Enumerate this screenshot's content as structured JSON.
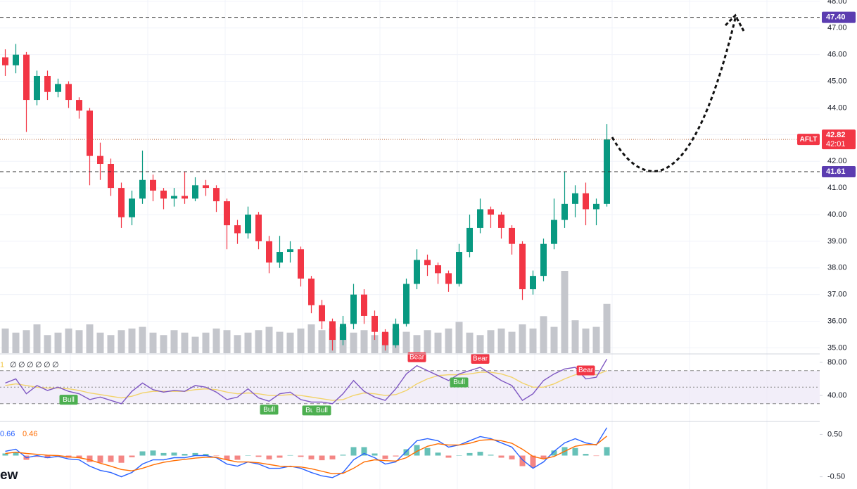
{
  "chart_data": [
    {
      "type": "candlestick",
      "symbol": "AFLT",
      "countdown": "42:01",
      "open": [
        45.9,
        45.6,
        46.0,
        44.3,
        45.2,
        44.6,
        44.9,
        44.3,
        43.9,
        42.2,
        41.9,
        41.0,
        39.9,
        40.6,
        41.3,
        40.9,
        40.6,
        40.7,
        40.6,
        41.1,
        41.0,
        40.5,
        39.6,
        39.3,
        40.0,
        39.0,
        38.2,
        38.6,
        38.7,
        37.6,
        36.6,
        36.0,
        35.3,
        35.9,
        37.0,
        36.2,
        35.6,
        35.1,
        35.9,
        37.4,
        38.3,
        38.1,
        37.8,
        37.4,
        38.6,
        39.5,
        40.2,
        40.0,
        39.5,
        38.9,
        37.2,
        37.7,
        38.9,
        39.8,
        40.4,
        40.8,
        40.2,
        40.4
      ],
      "high": [
        46.2,
        46.4,
        46.1,
        45.4,
        45.4,
        45.1,
        45.0,
        44.4,
        44.0,
        42.7,
        42.1,
        41.2,
        40.9,
        42.4,
        41.5,
        41.0,
        41.0,
        41.6,
        41.4,
        41.3,
        41.1,
        40.6,
        39.8,
        40.3,
        40.1,
        39.2,
        39.2,
        39.0,
        38.8,
        37.7,
        36.8,
        36.1,
        36.2,
        37.4,
        37.2,
        36.4,
        35.7,
        36.1,
        37.6,
        38.7,
        38.5,
        38.2,
        37.9,
        38.9,
        40.0,
        40.6,
        40.3,
        40.1,
        39.6,
        39.0,
        37.9,
        39.1,
        40.6,
        41.6,
        41.1,
        41.2,
        40.6,
        43.4
      ],
      "low": [
        45.2,
        45.3,
        43.1,
        44.1,
        44.3,
        44.4,
        44.0,
        43.6,
        41.1,
        41.3,
        40.7,
        39.5,
        39.6,
        40.4,
        40.5,
        40.2,
        40.3,
        40.4,
        40.5,
        40.7,
        40.1,
        38.7,
        38.9,
        39.1,
        38.7,
        37.8,
        38.0,
        38.2,
        37.3,
        36.3,
        35.7,
        34.9,
        35.1,
        35.7,
        35.9,
        35.3,
        34.9,
        35.0,
        35.8,
        37.2,
        37.7,
        37.4,
        37.1,
        37.3,
        38.4,
        39.3,
        39.5,
        39.1,
        38.5,
        36.8,
        37.0,
        37.5,
        38.7,
        39.5,
        39.9,
        39.6,
        39.6,
        40.3
      ],
      "close": [
        45.6,
        46.0,
        44.3,
        45.2,
        44.6,
        44.9,
        44.3,
        43.9,
        42.2,
        41.9,
        41.0,
        39.9,
        40.6,
        41.3,
        40.9,
        40.6,
        40.7,
        40.6,
        41.1,
        41.0,
        40.5,
        39.6,
        39.3,
        40.0,
        39.0,
        38.2,
        38.6,
        38.7,
        37.6,
        36.6,
        36.0,
        35.3,
        35.9,
        37.0,
        36.2,
        35.6,
        35.1,
        35.9,
        37.4,
        38.3,
        38.1,
        37.8,
        37.4,
        38.6,
        39.5,
        40.2,
        40.0,
        39.5,
        38.9,
        37.2,
        37.7,
        38.9,
        39.8,
        40.4,
        40.8,
        40.2,
        40.4,
        42.82
      ],
      "volume": [
        30,
        25,
        28,
        35,
        22,
        25,
        30,
        28,
        35,
        25,
        22,
        28,
        30,
        32,
        25,
        22,
        28,
        25,
        20,
        25,
        30,
        28,
        22,
        25,
        28,
        32,
        26,
        25,
        30,
        35,
        28,
        30,
        32,
        25,
        28,
        22,
        25,
        30,
        26,
        22,
        28,
        25,
        30,
        38,
        25,
        22,
        28,
        30,
        26,
        35,
        30,
        45,
        32,
        100,
        40,
        30,
        32,
        60
      ],
      "volume_ylim": [
        0,
        100
      ],
      "up_color": "#089981",
      "down_color": "#f23645",
      "volume_color": "#c4c6cc",
      "ylim": [
        34.8,
        48.05
      ],
      "yticks": [
        {
          "value": 35,
          "label": "35.00"
        },
        {
          "value": 36,
          "label": "36.00"
        },
        {
          "value": 37,
          "label": "37.00"
        },
        {
          "value": 38,
          "label": "38.00"
        },
        {
          "value": 39,
          "label": "39.00"
        },
        {
          "value": 40,
          "label": "40.00"
        },
        {
          "value": 41,
          "label": "41.00"
        },
        {
          "value": 42,
          "label": "42.00"
        },
        {
          "value": 43,
          "label": "43.00"
        },
        {
          "value": 44,
          "label": "44.00"
        },
        {
          "value": 45,
          "label": "45.00"
        },
        {
          "value": 46,
          "label": "46.00"
        },
        {
          "value": 47,
          "label": "47.00"
        },
        {
          "value": 48,
          "label": "48.00"
        }
      ],
      "grid": true,
      "levels": [
        {
          "value": 47.4,
          "label": "47.40"
        },
        41.61
      ],
      "level_color": "#5b3cb0"
    },
    {
      "type": "rsi",
      "header": [
        "1",
        "∅",
        "∅",
        "∅",
        "∅",
        "∅",
        "∅"
      ],
      "series": [
        {
          "color": "#7e57c2",
          "values": [
            55,
            60,
            42,
            52,
            46,
            50,
            45,
            42,
            35,
            38,
            34,
            30,
            45,
            55,
            47,
            44,
            46,
            45,
            52,
            50,
            44,
            35,
            38,
            48,
            37,
            33,
            42,
            44,
            35,
            32,
            32,
            30,
            42,
            58,
            45,
            38,
            34,
            48,
            66,
            76,
            70,
            64,
            58,
            66,
            70,
            74,
            66,
            58,
            52,
            34,
            42,
            58,
            66,
            72,
            74,
            60,
            62,
            84
          ]
        },
        {
          "color": "#f2d36b",
          "values": [
            52,
            54,
            52,
            50,
            49,
            49,
            48,
            46,
            43,
            41,
            39,
            37,
            39,
            43,
            45,
            45,
            45,
            45,
            47,
            48,
            47,
            44,
            42,
            43,
            42,
            40,
            40,
            41,
            40,
            38,
            36,
            34,
            35,
            40,
            43,
            42,
            40,
            41,
            46,
            54,
            60,
            64,
            65,
            65,
            66,
            68,
            68,
            66,
            62,
            55,
            50,
            50,
            54,
            60,
            65,
            66,
            65,
            70
          ]
        }
      ],
      "signals": [
        null,
        null,
        null,
        null,
        null,
        null,
        "Bull",
        null,
        null,
        null,
        null,
        null,
        null,
        null,
        null,
        null,
        null,
        null,
        null,
        null,
        null,
        null,
        null,
        null,
        null,
        "Bull",
        null,
        null,
        null,
        "Bull",
        "Bull",
        null,
        null,
        null,
        null,
        null,
        null,
        null,
        null,
        "Bear",
        null,
        null,
        null,
        "Bull",
        null,
        "Bear",
        null,
        null,
        null,
        null,
        null,
        null,
        null,
        null,
        null,
        "Bear",
        null,
        null
      ],
      "bull_color": "#4caf50",
      "bear_color": "#f23645",
      "bands": [
        30,
        50,
        70
      ],
      "band_color": "#ede7f6",
      "ylim": [
        9.4,
        88.5
      ],
      "yticks": [
        {
          "value": 80,
          "label": "80.00"
        },
        {
          "value": 40,
          "label": "40.00"
        }
      ]
    },
    {
      "type": "macd",
      "watermark": "ew",
      "series": [
        {
          "color": "#2962ff",
          "values": [
            0.1,
            0.15,
            -0.05,
            0.0,
            -0.05,
            -0.02,
            -0.08,
            -0.1,
            -0.25,
            -0.35,
            -0.4,
            -0.5,
            -0.4,
            -0.2,
            -0.1,
            -0.1,
            -0.05,
            -0.05,
            0.0,
            0.0,
            -0.05,
            -0.2,
            -0.25,
            -0.15,
            -0.2,
            -0.3,
            -0.3,
            -0.25,
            -0.3,
            -0.4,
            -0.48,
            -0.52,
            -0.4,
            -0.1,
            0.05,
            -0.05,
            -0.2,
            -0.15,
            0.1,
            0.35,
            0.4,
            0.35,
            0.2,
            0.25,
            0.35,
            0.45,
            0.4,
            0.3,
            0.2,
            -0.1,
            -0.3,
            -0.15,
            0.1,
            0.3,
            0.4,
            0.3,
            0.25,
            0.66
          ]
        },
        {
          "color": "#ff6d00",
          "values": [
            0.05,
            0.08,
            0.05,
            0.03,
            0.01,
            0.0,
            -0.03,
            -0.05,
            -0.1,
            -0.18,
            -0.25,
            -0.33,
            -0.36,
            -0.3,
            -0.22,
            -0.16,
            -0.12,
            -0.09,
            -0.06,
            -0.04,
            -0.04,
            -0.1,
            -0.15,
            -0.15,
            -0.17,
            -0.21,
            -0.25,
            -0.26,
            -0.27,
            -0.31,
            -0.37,
            -0.43,
            -0.42,
            -0.3,
            -0.15,
            -0.1,
            -0.12,
            -0.13,
            -0.05,
            0.1,
            0.22,
            0.28,
            0.25,
            0.25,
            0.29,
            0.36,
            0.38,
            0.35,
            0.29,
            0.15,
            -0.02,
            -0.08,
            -0.02,
            0.1,
            0.22,
            0.26,
            0.26,
            0.46
          ]
        }
      ],
      "histogram": {
        "up_color": "#26a69a",
        "down_color": "#ef5350",
        "values": [
          0.05,
          0.07,
          -0.1,
          -0.03,
          -0.06,
          -0.02,
          -0.05,
          -0.05,
          -0.15,
          -0.17,
          -0.15,
          -0.17,
          -0.04,
          0.1,
          0.12,
          0.06,
          0.07,
          0.04,
          0.06,
          0.04,
          -0.01,
          -0.1,
          -0.1,
          0.0,
          -0.03,
          -0.09,
          -0.05,
          0.01,
          -0.03,
          -0.09,
          -0.11,
          -0.09,
          0.02,
          0.2,
          0.2,
          0.05,
          -0.08,
          -0.02,
          0.15,
          0.25,
          0.18,
          0.07,
          -0.05,
          0.0,
          0.06,
          0.09,
          0.02,
          -0.05,
          -0.09,
          -0.25,
          -0.28,
          -0.07,
          0.12,
          0.2,
          0.18,
          0.04,
          -0.01,
          0.2
        ]
      },
      "ylim": [
        -0.79,
        0.79
      ],
      "yticks": [
        {
          "value": 0.5,
          "label": "0.50"
        },
        {
          "value": -0.5,
          "label": "-0.50"
        }
      ]
    }
  ]
}
